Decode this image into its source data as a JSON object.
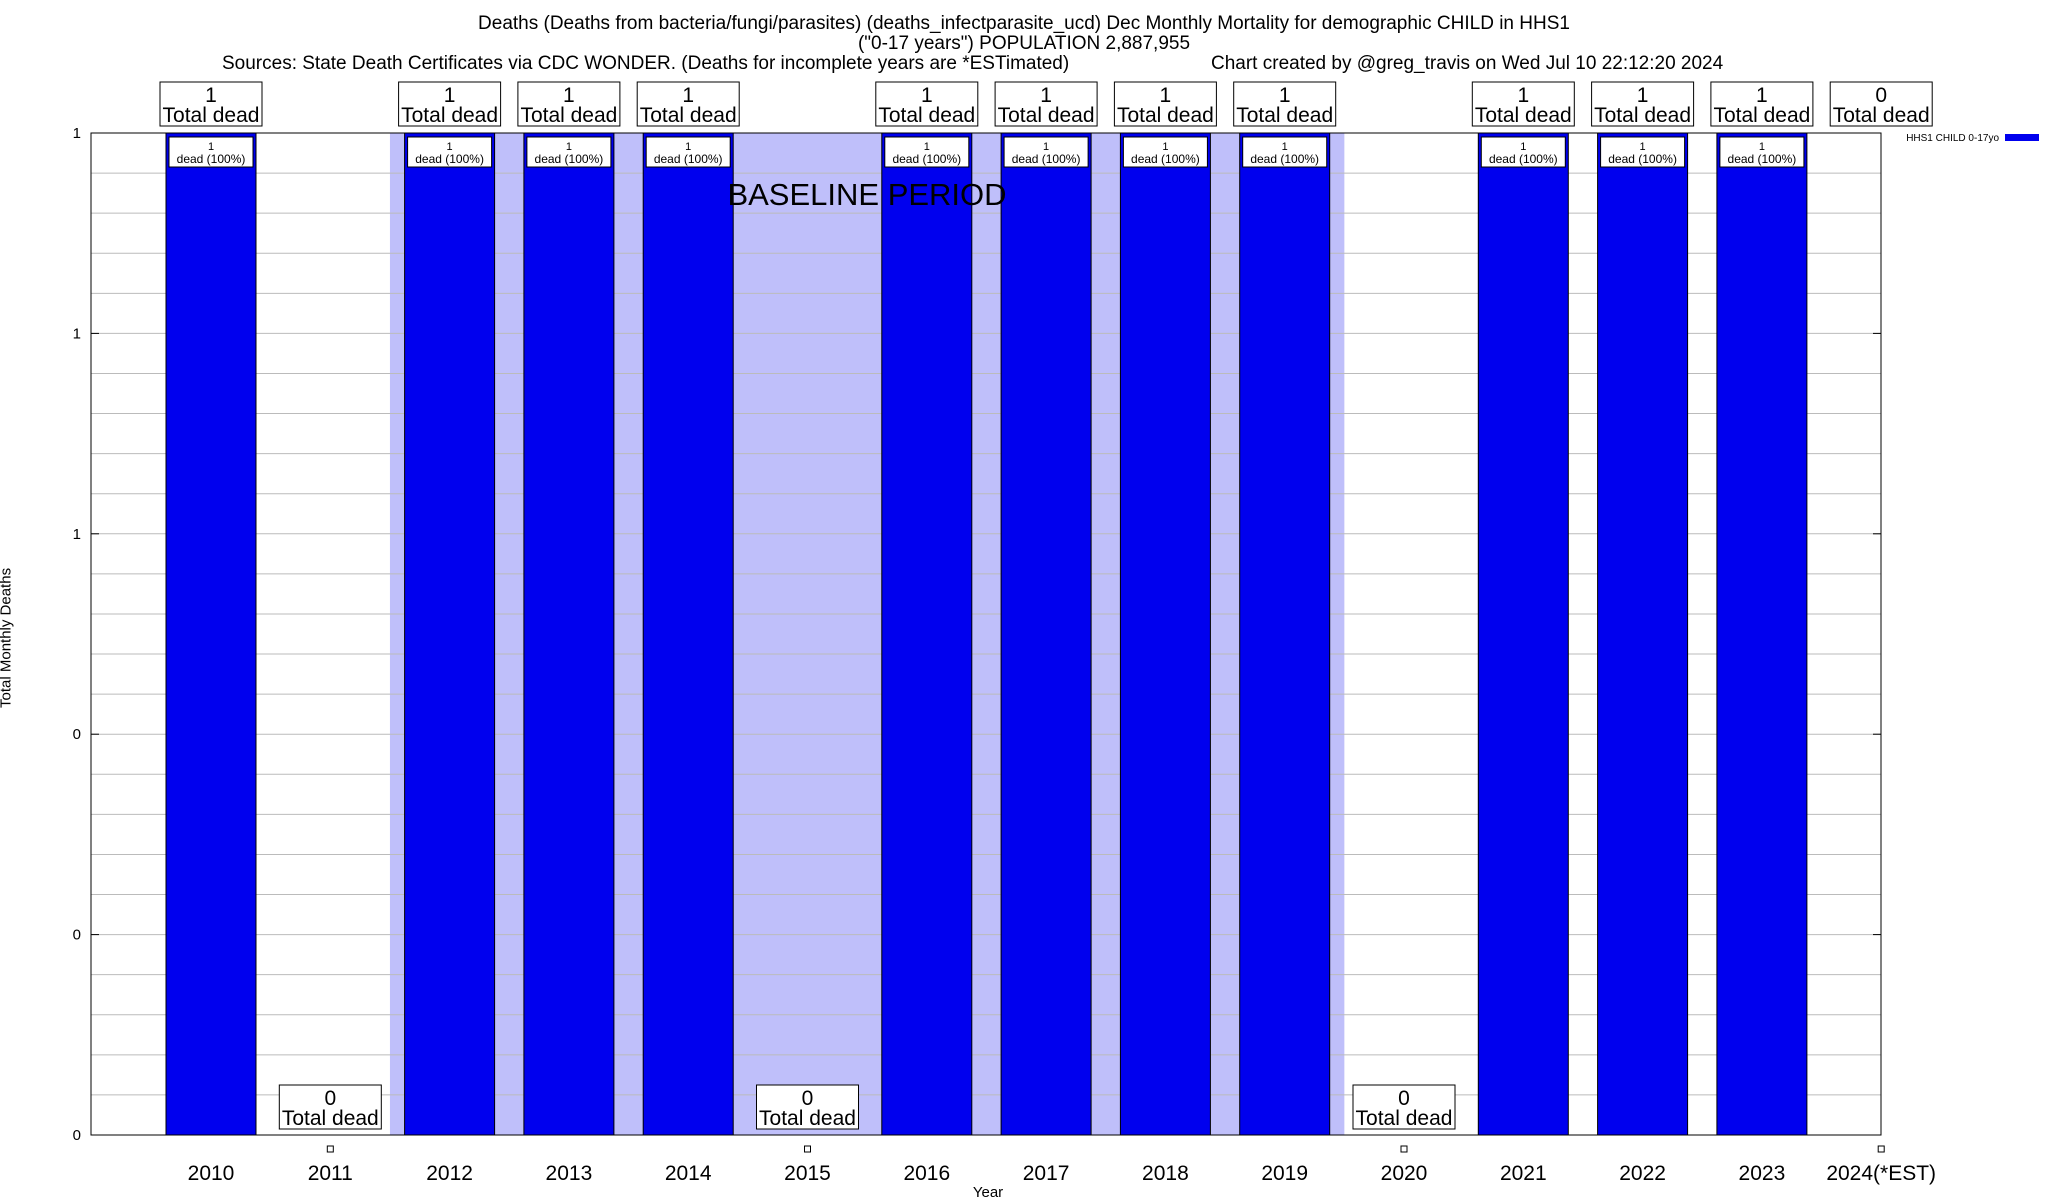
{
  "chart_data": {
    "type": "bar",
    "title_lines": [
      "Deaths (Deaths from bacteria/fungi/parasites) (deaths_infectparasite_ucd) Dec Monthly Mortality for demographic CHILD in HHS1",
      "(\"0-17 years\") POPULATION 2,887,955"
    ],
    "sources": "Sources: State Death Certificates via CDC WONDER. (Deaths for incomplete years are *ESTimated)",
    "credit": "Chart created by @greg_travis on Wed Jul 10 22:12:20 2024",
    "xlabel": "Year",
    "ylabel": "Total Monthly Deaths",
    "ylim": [
      0,
      1
    ],
    "ytick_labels": [
      "0",
      "0",
      "0",
      "1",
      "1",
      "1"
    ],
    "categories": [
      "2010",
      "2011",
      "2012",
      "2013",
      "2014",
      "2015",
      "2016",
      "2017",
      "2018",
      "2019",
      "2020",
      "2021",
      "2022",
      "2023",
      "2024(*EST)"
    ],
    "series": [
      {
        "name": "HHS1 CHILD 0-17yo",
        "color": "#0000ee",
        "values": [
          1,
          0,
          1,
          1,
          1,
          0,
          1,
          1,
          1,
          1,
          0,
          1,
          1,
          1,
          0
        ]
      }
    ],
    "top_labels": [
      "1",
      "",
      "1",
      "1",
      "1",
      "",
      "1",
      "1",
      "1",
      "1",
      "",
      "1",
      "1",
      "1",
      "0"
    ],
    "total_label": "Total dead",
    "inner_label_count": "1",
    "inner_label_text": "dead (100%)",
    "baseline": {
      "label": "BASELINE PERIOD",
      "start": "2012",
      "end": "2019",
      "color": "#bfbffa"
    },
    "grid": true,
    "legend_position": "top-right"
  }
}
